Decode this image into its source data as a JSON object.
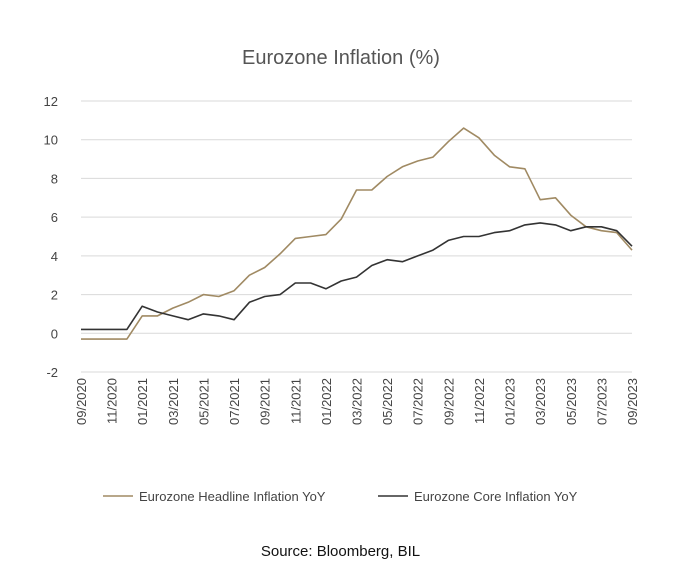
{
  "chart_data": {
    "type": "line",
    "title": "Eurozone Inflation (%)",
    "xlabel": "",
    "ylabel": "",
    "ylim": [
      -2,
      12
    ],
    "yticks": [
      -2,
      0,
      2,
      4,
      6,
      8,
      10,
      12
    ],
    "grid": true,
    "legend": "bottom",
    "x": [
      "09/2020",
      "10/2020",
      "11/2020",
      "12/2020",
      "01/2021",
      "02/2021",
      "03/2021",
      "04/2021",
      "05/2021",
      "06/2021",
      "07/2021",
      "08/2021",
      "09/2021",
      "10/2021",
      "11/2021",
      "12/2021",
      "01/2022",
      "02/2022",
      "03/2022",
      "04/2022",
      "05/2022",
      "06/2022",
      "07/2022",
      "08/2022",
      "09/2022",
      "10/2022",
      "11/2022",
      "12/2022",
      "01/2023",
      "02/2023",
      "03/2023",
      "04/2023",
      "05/2023",
      "06/2023",
      "07/2023",
      "08/2023",
      "09/2023"
    ],
    "x_tick_labels": [
      "09/2020",
      "11/2020",
      "01/2021",
      "03/2021",
      "05/2021",
      "07/2021",
      "09/2021",
      "11/2021",
      "01/2022",
      "03/2022",
      "05/2022",
      "07/2022",
      "09/2022",
      "11/2022",
      "01/2023",
      "03/2023",
      "05/2023",
      "07/2023",
      "09/2023"
    ],
    "series": [
      {
        "name": "Eurozone Headline Inflation YoY",
        "color": "#a08a63",
        "values": [
          -0.3,
          -0.3,
          -0.3,
          -0.3,
          0.9,
          0.9,
          1.3,
          1.6,
          2.0,
          1.9,
          2.2,
          3.0,
          3.4,
          4.1,
          4.9,
          5.0,
          5.1,
          5.9,
          7.4,
          7.4,
          8.1,
          8.6,
          8.9,
          9.1,
          9.9,
          10.6,
          10.1,
          9.2,
          8.6,
          8.5,
          6.9,
          7.0,
          6.1,
          5.5,
          5.3,
          5.2,
          4.3
        ]
      },
      {
        "name": "Eurozone Core Inflation YoY",
        "color": "#333333",
        "values": [
          0.2,
          0.2,
          0.2,
          0.2,
          1.4,
          1.1,
          0.9,
          0.7,
          1.0,
          0.9,
          0.7,
          1.6,
          1.9,
          2.0,
          2.6,
          2.6,
          2.3,
          2.7,
          2.9,
          3.5,
          3.8,
          3.7,
          4.0,
          4.3,
          4.8,
          5.0,
          5.0,
          5.2,
          5.3,
          5.6,
          5.7,
          5.6,
          5.3,
          5.5,
          5.5,
          5.3,
          4.5
        ]
      }
    ]
  },
  "source_note": "Source: Bloomberg, BIL"
}
